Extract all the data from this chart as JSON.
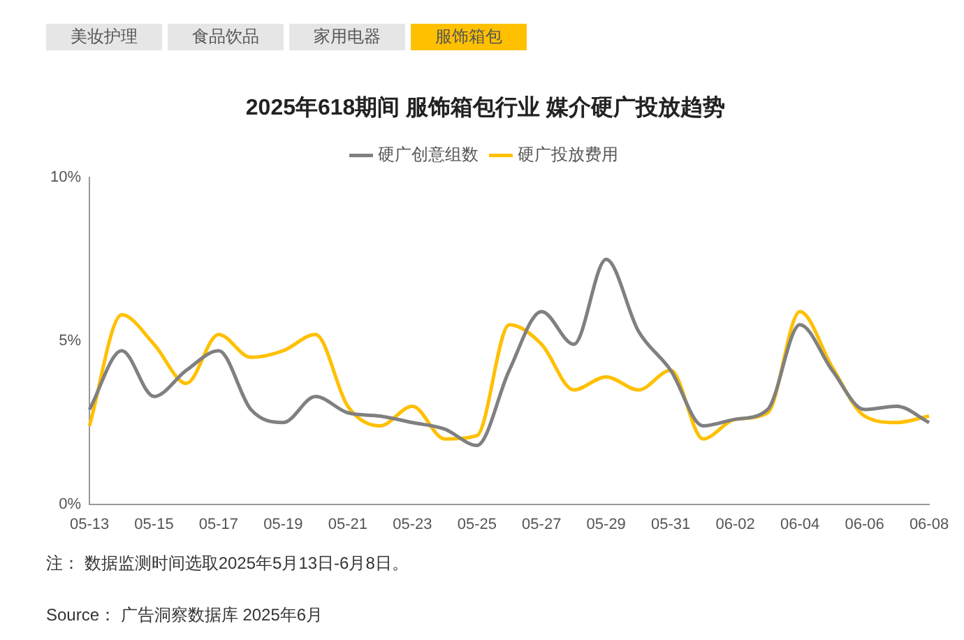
{
  "chart_data": {
    "type": "line",
    "title": "2025年618期间 服饰箱包行业 媒介硬广投放趋势",
    "categories": [
      "05-13",
      null,
      "05-15",
      null,
      "05-17",
      null,
      "05-19",
      null,
      "05-21",
      null,
      "05-23",
      null,
      "05-25",
      null,
      "05-27",
      null,
      "05-29",
      null,
      "05-31",
      null,
      "06-02",
      null,
      "06-04",
      null,
      "06-06",
      null,
      "06-08"
    ],
    "series": [
      {
        "name": "硬广创意组数",
        "color": "#808080",
        "values": [
          2.9,
          4.7,
          3.3,
          4.1,
          4.7,
          2.9,
          2.5,
          3.3,
          2.8,
          2.7,
          2.5,
          2.3,
          1.8,
          4.1,
          5.9,
          4.9,
          7.5,
          5.3,
          4.1,
          2.4,
          2.6,
          2.9,
          5.5,
          4.1,
          2.9,
          3.0,
          2.5
        ]
      },
      {
        "name": "硬广投放费用",
        "color": "#ffc000",
        "values": [
          2.4,
          5.8,
          4.9,
          3.7,
          5.2,
          4.5,
          4.7,
          5.2,
          3.0,
          2.4,
          3.0,
          2.0,
          2.1,
          5.5,
          4.9,
          3.5,
          3.9,
          3.5,
          4.1,
          2.0,
          2.6,
          2.8,
          5.9,
          4.2,
          2.7,
          2.5,
          2.7
        ]
      }
    ],
    "ylim": [
      0,
      10
    ],
    "yticks": [
      {
        "value": 0,
        "label": "0%"
      },
      {
        "value": 5,
        "label": "5%"
      },
      {
        "value": 10,
        "label": "10%"
      }
    ],
    "grid": false,
    "legend": "top",
    "marker": "none",
    "line_style": "solid",
    "annotations": [
      "美妆护理",
      "食品饮品",
      "家用电器",
      "服饰箱包",
      "注： 数据监测时间选取2025年5月13日-6月8日。",
      "Source： 广告洞察数据库 2025年6月"
    ]
  }
}
